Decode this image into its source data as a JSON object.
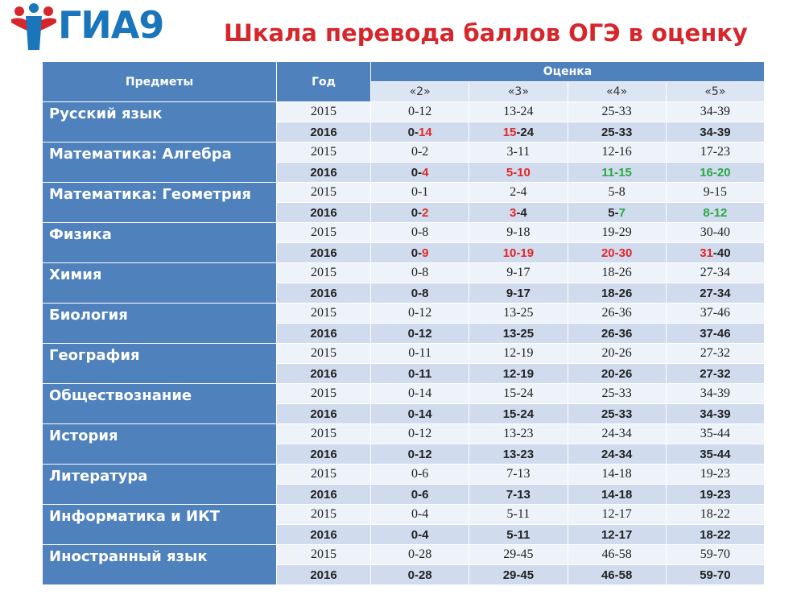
{
  "header": {
    "logo": "ГИА9",
    "title": "Шкала перевода баллов ОГЭ в оценку"
  },
  "table": {
    "columns": {
      "subject": "Предметы",
      "year": "Год",
      "grade": "Оценка",
      "grades": [
        "«2»",
        "«3»",
        "«4»",
        "«5»"
      ]
    },
    "rows": [
      {
        "subject": "Русский язык",
        "years": [
          {
            "year": "2015",
            "cells": [
              "0-12",
              "13-24",
              "25-33",
              "34-39"
            ]
          },
          {
            "year": "2016",
            "cells": [
              [
                {
                  "text": "0-"
                },
                {
                  "text": "14",
                  "color": "#e3262b"
                }
              ],
              [
                {
                  "text": "15",
                  "color": "#e3262b"
                },
                {
                  "text": "-24"
                }
              ],
              "25-33",
              "34-39"
            ]
          }
        ]
      },
      {
        "subject": "Математика: Алгебра",
        "years": [
          {
            "year": "2015",
            "cells": [
              "0-2",
              "3-11",
              "12-16",
              "17-23"
            ]
          },
          {
            "year": "2016",
            "cells": [
              [
                {
                  "text": "0-"
                },
                {
                  "text": "4",
                  "color": "#e3262b"
                }
              ],
              [
                {
                  "text": "5-10",
                  "color": "#e3262b"
                }
              ],
              [
                {
                  "text": "11-15",
                  "color": "#2aa845"
                }
              ],
              [
                {
                  "text": "16-20",
                  "color": "#2aa845"
                }
              ]
            ]
          }
        ]
      },
      {
        "subject": "Математика: Геометрия",
        "years": [
          {
            "year": "2015",
            "cells": [
              "0-1",
              "2-4",
              "5-8",
              "9-15"
            ]
          },
          {
            "year": "2016",
            "cells": [
              [
                {
                  "text": "0-"
                },
                {
                  "text": "2",
                  "color": "#e3262b"
                }
              ],
              [
                {
                  "text": "3",
                  "color": "#e3262b"
                },
                {
                  "text": "-4"
                }
              ],
              [
                {
                  "text": "5-"
                },
                {
                  "text": "7",
                  "color": "#2aa845"
                }
              ],
              [
                {
                  "text": "8-12",
                  "color": "#2aa845"
                }
              ]
            ]
          }
        ]
      },
      {
        "subject": "Физика",
        "years": [
          {
            "year": "2015",
            "cells": [
              "0-8",
              "9-18",
              "19-29",
              "30-40"
            ]
          },
          {
            "year": "2016",
            "cells": [
              [
                {
                  "text": "0-"
                },
                {
                  "text": "9",
                  "color": "#e3262b"
                }
              ],
              [
                {
                  "text": "10-19",
                  "color": "#e3262b"
                }
              ],
              [
                {
                  "text": "20-30",
                  "color": "#e3262b"
                }
              ],
              [
                {
                  "text": "31",
                  "color": "#e3262b"
                },
                {
                  "text": "-40"
                }
              ]
            ]
          }
        ]
      },
      {
        "subject": "Химия",
        "years": [
          {
            "year": "2015",
            "cells": [
              "0-8",
              "9-17",
              "18-26",
              "27-34"
            ]
          },
          {
            "year": "2016",
            "cells": [
              "0-8",
              "9-17",
              "18-26",
              "27-34"
            ]
          }
        ]
      },
      {
        "subject": "Биология",
        "years": [
          {
            "year": "2015",
            "cells": [
              "0-12",
              "13-25",
              "26-36",
              "37-46"
            ]
          },
          {
            "year": "2016",
            "cells": [
              "0-12",
              "13-25",
              "26-36",
              "37-46"
            ]
          }
        ]
      },
      {
        "subject": "География",
        "years": [
          {
            "year": "2015",
            "cells": [
              "0-11",
              "12-19",
              "20-26",
              "27-32"
            ]
          },
          {
            "year": "2016",
            "cells": [
              "0-11",
              "12-19",
              "20-26",
              "27-32"
            ]
          }
        ]
      },
      {
        "subject": "Обществознание",
        "years": [
          {
            "year": "2015",
            "cells": [
              "0-14",
              "15-24",
              "25-33",
              "34-39"
            ]
          },
          {
            "year": "2016",
            "cells": [
              "0-14",
              "15-24",
              "25-33",
              "34-39"
            ]
          }
        ]
      },
      {
        "subject": "История",
        "years": [
          {
            "year": "2015",
            "cells": [
              "0-12",
              "13-23",
              "24-34",
              "35-44"
            ]
          },
          {
            "year": "2016",
            "cells": [
              "0-12",
              "13-23",
              "24-34",
              "35-44"
            ]
          }
        ]
      },
      {
        "subject": "Литература",
        "years": [
          {
            "year": "2015",
            "cells": [
              "0-6",
              "7-13",
              "14-18",
              "19-23"
            ]
          },
          {
            "year": "2016",
            "cells": [
              "0-6",
              "7-13",
              "14-18",
              "19-23"
            ]
          }
        ]
      },
      {
        "subject": "Информатика и ИКТ",
        "years": [
          {
            "year": "2015",
            "cells": [
              "0-4",
              "5-11",
              "12-17",
              "18-22"
            ]
          },
          {
            "year": "2016",
            "cells": [
              "0-4",
              "5-11",
              "12-17",
              "18-22"
            ]
          }
        ]
      },
      {
        "subject": "Иностранный язык",
        "years": [
          {
            "year": "2015",
            "cells": [
              "0-28",
              "29-45",
              "46-58",
              "59-70"
            ]
          },
          {
            "year": "2016",
            "cells": [
              "0-28",
              "29-45",
              "46-58",
              "59-70"
            ]
          }
        ]
      }
    ]
  }
}
